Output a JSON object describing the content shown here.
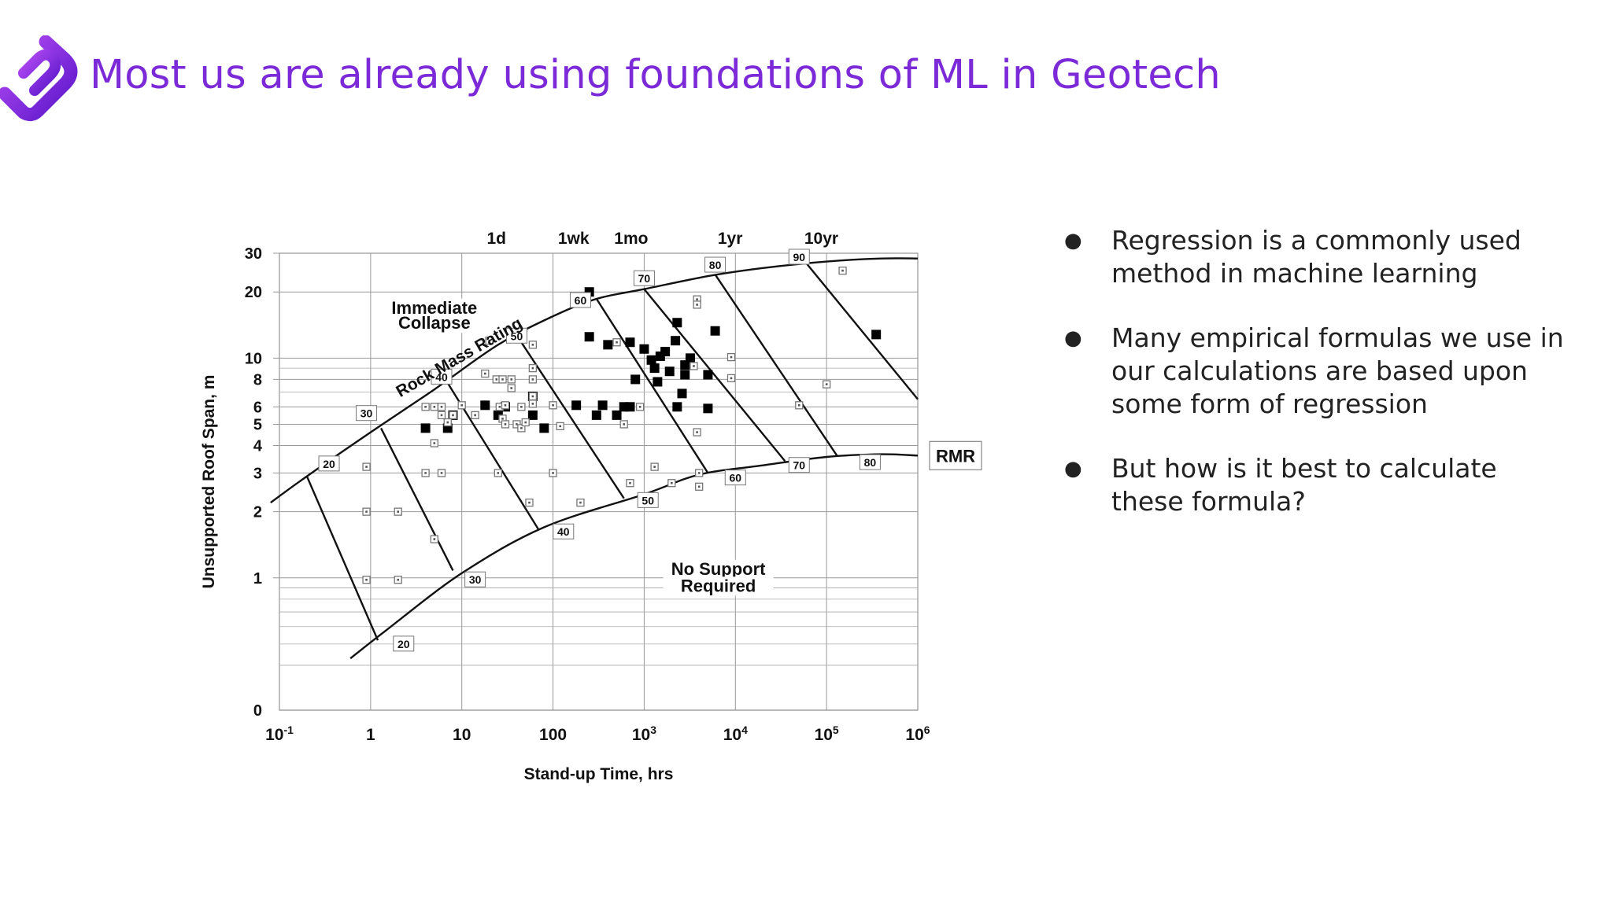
{
  "slide": {
    "title": "Most us are already using foundations of ML in Geotech",
    "bullets": [
      "Regression is a commonly used method in machine learning",
      "Many empirical formulas we use in our calculations are based upon some form of regression",
      "But how is it best to calculate these formula?"
    ],
    "bullet_icon": "●",
    "accent_color": "#7c2ad8",
    "logo_icon": "brand-logo-icon"
  },
  "chart_data": {
    "type": "scatter",
    "xlabel": "Stand-up Time, hrs",
    "ylabel": "Unsupported Roof Span, m",
    "xscale": "log",
    "yscale": "log",
    "xlim": [
      0.1,
      1000000
    ],
    "ylim": [
      0,
      30
    ],
    "x_ticks": [
      {
        "value": 0.1,
        "base": "10",
        "exp": "-1"
      },
      {
        "value": 1,
        "base": "1",
        "exp": ""
      },
      {
        "value": 10,
        "base": "10",
        "exp": ""
      },
      {
        "value": 100,
        "base": "100",
        "exp": ""
      },
      {
        "value": 1000,
        "base": "10",
        "exp": "3"
      },
      {
        "value": 10000,
        "base": "10",
        "exp": "4"
      },
      {
        "value": 100000,
        "base": "10",
        "exp": "5"
      },
      {
        "value": 1000000,
        "base": "10",
        "exp": "6"
      }
    ],
    "y_ticks": [
      {
        "value": 1,
        "label": "1"
      },
      {
        "value": 2,
        "label": "2"
      },
      {
        "value": 3,
        "label": "3"
      },
      {
        "value": 4,
        "label": "4"
      },
      {
        "value": 5,
        "label": "5"
      },
      {
        "value": 6,
        "label": "6"
      },
      {
        "value": 8,
        "label": "8"
      },
      {
        "value": 10,
        "label": "10"
      },
      {
        "value": 20,
        "label": "20"
      },
      {
        "value": 30,
        "label": "30"
      }
    ],
    "y_zero_label": "0",
    "minor_y_gridlines": [
      0.4,
      0.5,
      0.6,
      0.7,
      0.8,
      0.9,
      7,
      9
    ],
    "top_ticks": [
      {
        "label": "1d",
        "x": 24
      },
      {
        "label": "1wk",
        "x": 168
      },
      {
        "label": "1mo",
        "x": 720
      },
      {
        "label": "1yr",
        "x": 8760
      },
      {
        "label": "10yr",
        "x": 87600
      }
    ],
    "upper_boundary": [
      [
        0.08,
        2.2
      ],
      [
        0.2,
        2.9
      ],
      [
        1,
        4.6
      ],
      [
        5,
        7.2
      ],
      [
        25,
        11.5
      ],
      [
        100,
        15.5
      ],
      [
        300,
        18.6
      ],
      [
        1000,
        20.6
      ],
      [
        5000,
        23.6
      ],
      [
        20000,
        25.7
      ],
      [
        100000,
        27.5
      ],
      [
        400000,
        28.4
      ],
      [
        1000000,
        28.4
      ]
    ],
    "lower_boundary": [
      [
        0.6,
        0.43
      ],
      [
        1.5,
        0.58
      ],
      [
        10,
        1.05
      ],
      [
        80,
        1.7
      ],
      [
        1000,
        2.4
      ],
      [
        4000,
        2.95
      ],
      [
        20000,
        3.25
      ],
      [
        100000,
        3.55
      ],
      [
        400000,
        3.65
      ],
      [
        1000000,
        3.6
      ]
    ],
    "rmr_lines": [
      {
        "from": [
          0.2,
          2.9
        ],
        "to": [
          1.2,
          0.52
        ]
      },
      {
        "from": [
          1.3,
          4.8
        ],
        "to": [
          8,
          1.08
        ]
      },
      {
        "from": [
          7,
          7.7
        ],
        "to": [
          70,
          1.65
        ]
      },
      {
        "from": [
          40,
          12.7
        ],
        "to": [
          600,
          2.3
        ]
      },
      {
        "from": [
          300,
          18.6
        ],
        "to": [
          5000,
          3.0
        ]
      },
      {
        "from": [
          1000,
          20.6
        ],
        "to": [
          35000,
          3.4
        ]
      },
      {
        "from": [
          6000,
          24
        ],
        "to": [
          130000,
          3.6
        ]
      },
      {
        "from": [
          60000,
          27
        ],
        "to": [
          1000000,
          6.5
        ]
      }
    ],
    "rmr_labels": [
      {
        "text": "20",
        "x": 0.35,
        "y": 3.3
      },
      {
        "text": "30",
        "x": 0.9,
        "y": 5.6
      },
      {
        "text": "40",
        "x": 6,
        "y": 8.2
      },
      {
        "text": "50",
        "x": 40,
        "y": 12.6
      },
      {
        "text": "60",
        "x": 200,
        "y": 18.3
      },
      {
        "text": "70",
        "x": 1000,
        "y": 23
      },
      {
        "text": "80",
        "x": 6000,
        "y": 26.5
      },
      {
        "text": "90",
        "x": 50000,
        "y": 28.8
      },
      {
        "text": "20",
        "x": 2.3,
        "y": 0.5
      },
      {
        "text": "30",
        "x": 14,
        "y": 0.98
      },
      {
        "text": "40",
        "x": 130,
        "y": 1.62
      },
      {
        "text": "50",
        "x": 1100,
        "y": 2.25
      },
      {
        "text": "60",
        "x": 10000,
        "y": 2.85
      },
      {
        "text": "70",
        "x": 50000,
        "y": 3.25
      },
      {
        "text": "80",
        "x": 300000,
        "y": 3.35
      }
    ],
    "annotations": [
      {
        "text": "Immediate",
        "x": 5,
        "y": 16.2
      },
      {
        "text": "Collapse",
        "x": 5,
        "y": 13.8
      },
      {
        "text": "No Support",
        "x": 6500,
        "y": 1.05
      },
      {
        "text": "Required",
        "x": 6500,
        "y": 0.88
      }
    ],
    "curve_label": {
      "text": "Rock Mass Rating",
      "x": 10,
      "y": 9.6,
      "angle": -30
    },
    "rmr_axis_label": "RMR",
    "series": [
      {
        "name": "",
        "marker": "filled-square",
        "points": [
          [
            4,
            4.8
          ],
          [
            7,
            4.8
          ],
          [
            8,
            5.5
          ],
          [
            18,
            6.1
          ],
          [
            25,
            5.5
          ],
          [
            30,
            6
          ],
          [
            60,
            5.5
          ],
          [
            60,
            6.7
          ],
          [
            80,
            4.8
          ],
          [
            180,
            6.1
          ],
          [
            250,
            20
          ],
          [
            250,
            12.5
          ],
          [
            300,
            5.5
          ],
          [
            350,
            6.1
          ],
          [
            400,
            11.5
          ],
          [
            500,
            5.5
          ],
          [
            600,
            6
          ],
          [
            700,
            6
          ],
          [
            700,
            11.8
          ],
          [
            800,
            8
          ],
          [
            1000,
            11
          ],
          [
            1200,
            9.8
          ],
          [
            1300,
            9
          ],
          [
            1400,
            7.8
          ],
          [
            1500,
            10.2
          ],
          [
            1700,
            10.7
          ],
          [
            1900,
            8.7
          ],
          [
            2200,
            12
          ],
          [
            2300,
            14.5
          ],
          [
            2300,
            6
          ],
          [
            2600,
            6.9
          ],
          [
            2800,
            9.3
          ],
          [
            2800,
            8.4
          ],
          [
            3200,
            10
          ],
          [
            5000,
            8.4
          ],
          [
            5000,
            5.9
          ],
          [
            6000,
            13.3
          ],
          [
            350000,
            12.8
          ]
        ]
      },
      {
        "name": "",
        "marker": "open-square",
        "points": [
          [
            0.9,
            3.2
          ],
          [
            0.9,
            2
          ],
          [
            0.9,
            0.98
          ],
          [
            2,
            2
          ],
          [
            2,
            0.98
          ],
          [
            4,
            6
          ],
          [
            4,
            3
          ],
          [
            5,
            6
          ],
          [
            5,
            4.1
          ],
          [
            5,
            1.5
          ],
          [
            6,
            6
          ],
          [
            6,
            3
          ],
          [
            6,
            5.5
          ],
          [
            7,
            5.1
          ],
          [
            8,
            5.5
          ],
          [
            10,
            6.1
          ],
          [
            14,
            5.5
          ],
          [
            18,
            8.5
          ],
          [
            20,
            12
          ],
          [
            24,
            8
          ],
          [
            25,
            3
          ],
          [
            26,
            6
          ],
          [
            28,
            8
          ],
          [
            28,
            5.3
          ],
          [
            30,
            6.1
          ],
          [
            30,
            5
          ],
          [
            35,
            7.3
          ],
          [
            35,
            8
          ],
          [
            40,
            5
          ],
          [
            45,
            6
          ],
          [
            45,
            4.8
          ],
          [
            50,
            5.1
          ],
          [
            55,
            2.2
          ],
          [
            60,
            11.5
          ],
          [
            60,
            9
          ],
          [
            60,
            8
          ],
          [
            60,
            6.2
          ],
          [
            60,
            6.7
          ],
          [
            100,
            3
          ],
          [
            100,
            6.1
          ],
          [
            120,
            4.9
          ],
          [
            200,
            2.2
          ],
          [
            500,
            11.8
          ],
          [
            600,
            5
          ],
          [
            700,
            2.7
          ],
          [
            900,
            6
          ],
          [
            1300,
            3.2
          ],
          [
            2000,
            2.7
          ],
          [
            3500,
            9.2
          ],
          [
            3800,
            18.5
          ],
          [
            3800,
            17.5
          ],
          [
            3800,
            4.6
          ],
          [
            4000,
            3
          ],
          [
            4000,
            2.6
          ],
          [
            9000,
            10.1
          ],
          [
            9000,
            8.1
          ],
          [
            50000,
            6.1
          ],
          [
            100000,
            7.6
          ],
          [
            150000,
            25
          ]
        ]
      }
    ]
  }
}
